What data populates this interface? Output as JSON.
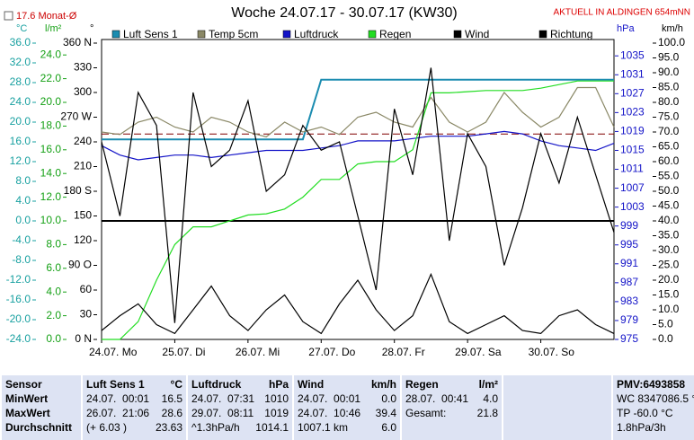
{
  "chart_data": {
    "type": "line",
    "title": "Woche 24.07.17 - 30.07.17 (KW30)",
    "station": "AKTUELL IN ALDINGEN 654mNN",
    "reference": {
      "label": "17.6 Monat-Ø",
      "value": 17.6,
      "axis": 0,
      "color": "#800000"
    },
    "xlim": [
      0,
      168
    ],
    "xticks": [
      {
        "value": 0,
        "label": "24.07. Mo"
      },
      {
        "value": 24,
        "label": "25.07. Di"
      },
      {
        "value": 48,
        "label": "26.07. Mi"
      },
      {
        "value": 72,
        "label": "27.07. Do"
      },
      {
        "value": 96,
        "label": "28.07. Fr"
      },
      {
        "value": 120,
        "label": "29.07. Sa"
      },
      {
        "value": 144,
        "label": "30.07. So"
      }
    ],
    "x": [
      0,
      6,
      12,
      18,
      24,
      30,
      36,
      42,
      48,
      54,
      60,
      66,
      72,
      78,
      84,
      90,
      96,
      102,
      108,
      114,
      120,
      126,
      132,
      138,
      144,
      150,
      156,
      162,
      168
    ],
    "axes": [
      {
        "unit": "°C",
        "color": "#17a0a0",
        "ylim": [
          -24,
          36
        ],
        "yticks": [
          {
            "value": 36,
            "label": "36.0"
          },
          {
            "value": 32,
            "label": "32.0"
          },
          {
            "value": 28,
            "label": "28.0"
          },
          {
            "value": 24,
            "label": "24.0"
          },
          {
            "value": 20,
            "label": "20.0"
          },
          {
            "value": 16,
            "label": "16.0"
          },
          {
            "value": 12,
            "label": "12.0"
          },
          {
            "value": 8,
            "label": "8.0"
          },
          {
            "value": 4,
            "label": "4.0"
          },
          {
            "value": 0,
            "label": "0.0"
          },
          {
            "value": -4,
            "label": "-4.0"
          },
          {
            "value": -8,
            "label": "-8.0"
          },
          {
            "value": -12,
            "label": "-12.0"
          },
          {
            "value": -16,
            "label": "-16.0"
          },
          {
            "value": -20,
            "label": "-20.0"
          },
          {
            "value": -24,
            "label": "-24.0"
          }
        ]
      },
      {
        "unit": "l/m²",
        "color": "#14a014",
        "ylim": [
          0,
          25
        ],
        "yticks": [
          {
            "value": 24,
            "label": "24.0"
          },
          {
            "value": 22,
            "label": "22.0"
          },
          {
            "value": 20,
            "label": "20.0"
          },
          {
            "value": 18,
            "label": "18.0"
          },
          {
            "value": 16,
            "label": "16.0"
          },
          {
            "value": 14,
            "label": "14.0"
          },
          {
            "value": 12,
            "label": "12.0"
          },
          {
            "value": 10,
            "label": "10.0"
          },
          {
            "value": 8,
            "label": "8.0"
          },
          {
            "value": 6,
            "label": "6.0"
          },
          {
            "value": 4,
            "label": "4.0"
          },
          {
            "value": 2,
            "label": "2.0"
          },
          {
            "value": 0,
            "label": "0.0"
          }
        ]
      },
      {
        "unit": "°",
        "color": "#000000",
        "ylim": [
          0,
          360
        ],
        "yticks": [
          {
            "value": 360,
            "label": "360 N"
          },
          330,
          300,
          {
            "value": 270,
            "label": "270 W"
          },
          240,
          210,
          {
            "value": 180,
            "label": "180 S"
          },
          150,
          120,
          {
            "value": 90,
            "label": "90 O"
          },
          60,
          30,
          {
            "value": 0,
            "label": "0 N"
          }
        ]
      },
      {
        "unit": "hPa",
        "color": "#1414c8",
        "ylim": [
          975,
          1037.7
        ],
        "yticks": [
          1035,
          1031,
          1027,
          1023,
          1019,
          1015,
          1011,
          1007,
          1003,
          999,
          995,
          991,
          987,
          983,
          979,
          975
        ]
      },
      {
        "unit": "km/h",
        "color": "#000000",
        "ylim": [
          0,
          100
        ],
        "yticks": [
          {
            "value": 100,
            "label": "100.0"
          },
          {
            "value": 95,
            "label": "95.0"
          },
          {
            "value": 90,
            "label": "90.0"
          },
          {
            "value": 85,
            "label": "85.0"
          },
          {
            "value": 80,
            "label": "80.0"
          },
          {
            "value": 75,
            "label": "75.0"
          },
          {
            "value": 70,
            "label": "70.0"
          },
          {
            "value": 65,
            "label": "65.0"
          },
          {
            "value": 60,
            "label": "60.0"
          },
          {
            "value": 55,
            "label": "55.0"
          },
          {
            "value": 50,
            "label": "50.0"
          },
          {
            "value": 45,
            "label": "45.0"
          },
          {
            "value": 40,
            "label": "40.0"
          },
          {
            "value": 35,
            "label": "35.0"
          },
          {
            "value": 30,
            "label": "30.0"
          },
          {
            "value": 25,
            "label": "25.0"
          },
          {
            "value": 20,
            "label": "20.0"
          },
          {
            "value": 15,
            "label": "15.0"
          },
          {
            "value": 10,
            "label": "10.0"
          },
          {
            "value": 5,
            "label": "5.0"
          },
          {
            "value": 0,
            "label": "0.0"
          }
        ]
      }
    ],
    "series": [
      {
        "name": "Luft Sens 1",
        "color": "#1b8cb0",
        "axis": 0,
        "values": [
          16.5,
          16.5,
          16.5,
          16.5,
          16.5,
          16.5,
          16.5,
          16.5,
          16.5,
          16.5,
          16.5,
          16.5,
          28.6,
          28.6,
          28.6,
          28.6,
          28.6,
          28.6,
          28.6,
          28.6,
          28.6,
          28.6,
          28.6,
          28.6,
          28.6,
          28.6,
          28.6,
          28.6,
          28.6
        ]
      },
      {
        "name": "Temp 5cm",
        "color": "#8a8866",
        "axis": 0,
        "values": [
          18,
          17.5,
          20,
          21,
          19,
          18,
          21,
          20,
          18,
          17,
          20,
          18,
          19,
          17.5,
          21,
          22,
          20,
          19,
          25,
          20,
          18,
          20,
          26,
          22,
          19,
          21,
          27,
          27,
          19
        ]
      },
      {
        "name": "Luftdruck",
        "color": "#1414c8",
        "axis": 3,
        "values": [
          1016,
          1014,
          1013,
          1013.5,
          1014,
          1014,
          1013.5,
          1014,
          1014.5,
          1015,
          1015,
          1015,
          1015.5,
          1016,
          1017,
          1017,
          1017,
          1017.5,
          1018,
          1018,
          1018,
          1018.5,
          1019,
          1018.5,
          1017,
          1016,
          1015.5,
          1015,
          1016.5
        ]
      },
      {
        "name": "Regen",
        "color": "#22dd22",
        "axis": 1,
        "values": [
          0,
          0,
          1.5,
          5,
          8,
          9.5,
          9.5,
          10,
          10.5,
          10.6,
          11,
          12,
          13.5,
          13.5,
          14.8,
          15,
          15,
          16,
          20.8,
          20.8,
          20.9,
          21,
          21,
          21,
          21.2,
          21.5,
          21.8,
          21.8,
          21.8
        ]
      },
      {
        "name": "Wind",
        "color": "#000000",
        "axis": 4,
        "values": [
          3,
          8,
          12,
          5,
          2,
          10,
          18,
          8,
          3,
          10,
          15,
          6,
          2,
          12,
          20,
          10,
          3,
          8,
          22,
          6,
          2,
          5,
          8,
          3,
          2,
          8,
          10,
          5,
          2
        ]
      },
      {
        "name": "Richtung",
        "color": "#000000",
        "axis": 2,
        "values": [
          240,
          150,
          300,
          260,
          20,
          300,
          210,
          230,
          290,
          180,
          200,
          260,
          230,
          240,
          150,
          60,
          280,
          200,
          330,
          120,
          250,
          210,
          90,
          160,
          250,
          190,
          270,
          200,
          130
        ]
      }
    ]
  },
  "table": {
    "rows": [
      [
        [
          "Sensor"
        ],
        [
          "Luft Sens 1",
          "°C"
        ],
        [
          "Luftdruck",
          "hPa"
        ],
        [
          "Wind",
          "km/h"
        ],
        [
          "Regen",
          "l/m²"
        ],
        [],
        [
          "PMV:6493858"
        ]
      ],
      [
        [
          "MinWert"
        ],
        [
          "24.07.  00:01",
          "16.5"
        ],
        [
          "24.07.  07:31",
          "1010"
        ],
        [
          "24.07.  00:01",
          "0.0"
        ],
        [
          "28.07.  00:41",
          "4.0"
        ],
        [],
        [
          "WC 8347086.5 °"
        ]
      ],
      [
        [
          "MaxWert"
        ],
        [
          "26.07.  21:06",
          "28.6"
        ],
        [
          "29.07.  08:11",
          "1019"
        ],
        [
          "24.07.  10:46",
          "39.4"
        ],
        [
          "Gesamt:",
          "21.8"
        ],
        [],
        [
          "TP -60.0 °C"
        ]
      ],
      [
        [
          "Durchschnitt"
        ],
        [
          "(+ 6.03 )",
          "23.63"
        ],
        [
          "^1.3hPa/h",
          "1014.1"
        ],
        [
          "1007.1 km",
          "6.0"
        ],
        [],
        [],
        [
          "1.8hPa/3h"
        ]
      ]
    ]
  }
}
